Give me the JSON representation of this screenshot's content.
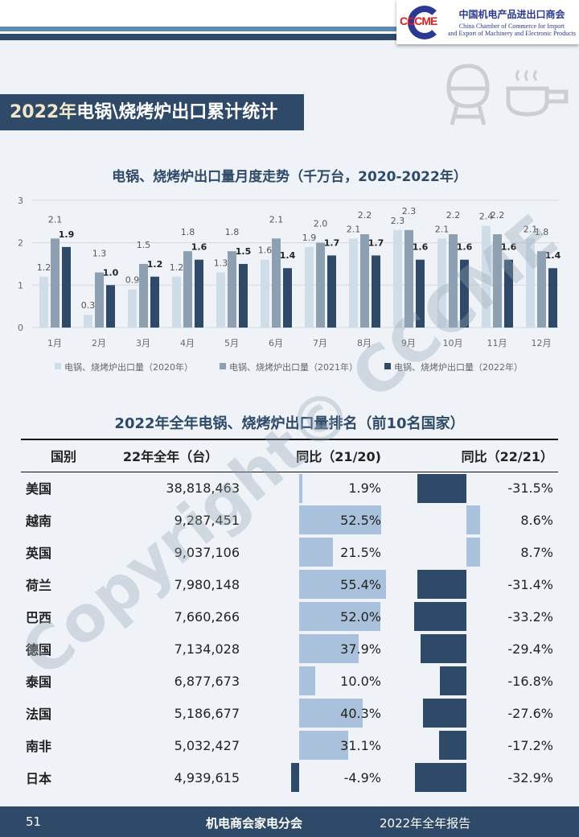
{
  "header": {
    "logo_mark": "CCCME",
    "logo_cn": "中国机电产品进出口商会",
    "logo_en_1": "China Chamber of Commerce for Import",
    "logo_en_2": "and Export of Machinery and Electronic Products"
  },
  "page_title_year": "2022年",
  "page_title_rest": "电锅\\烧烤炉出口累计统计",
  "watermark": "Copyright© CCCME",
  "chart_data": {
    "type": "bar",
    "title": "电锅、烧烤炉出口量月度走势（千万台，2020-2022年）",
    "categories": [
      "1月",
      "2月",
      "3月",
      "4月",
      "5月",
      "6月",
      "7月",
      "8月",
      "9月",
      "10月",
      "11月",
      "12月"
    ],
    "ylim": [
      0,
      3
    ],
    "yticks": [
      "0",
      "1",
      "2",
      "3"
    ],
    "series": [
      {
        "name": "电锅、烧烤炉出口量（2020年）",
        "color": "#cfdde8",
        "values": [
          1.2,
          0.3,
          0.9,
          1.2,
          1.3,
          1.6,
          1.9,
          2.1,
          2.3,
          2.1,
          2.4,
          2.1
        ]
      },
      {
        "name": "电锅、烧烤炉出口量（2021年）",
        "color": "#8da0b2",
        "values": [
          2.1,
          1.3,
          1.5,
          1.8,
          1.8,
          2.1,
          2.0,
          2.2,
          2.3,
          2.2,
          2.2,
          1.8
        ]
      },
      {
        "name": "电锅、烧烤炉出口量（2022年）",
        "color": "#2e4a68",
        "values": [
          1.9,
          1.0,
          1.2,
          1.6,
          1.5,
          1.4,
          1.7,
          1.7,
          1.6,
          1.6,
          1.6,
          1.4
        ]
      }
    ],
    "legend": "bottom"
  },
  "table": {
    "title": "2022年全年电锅、烧烤炉出口量排名（前10名国家）",
    "headers": [
      "国别",
      "22年全年（台）",
      "同比（21/20)",
      "同比（22/21）"
    ],
    "bar_colors": {
      "pos": "#a9c1da",
      "neg": "#2e4a68"
    },
    "rows": [
      {
        "country": "美国",
        "total": "38,818,463",
        "yoy1": "1.9%",
        "yoy1_v": 1.9,
        "yoy2": "-31.5%",
        "yoy2_v": -31.5
      },
      {
        "country": "越南",
        "total": "9,287,451",
        "yoy1": "52.5%",
        "yoy1_v": 52.5,
        "yoy2": "8.6%",
        "yoy2_v": 8.6
      },
      {
        "country": "英国",
        "total": "9,037,106",
        "yoy1": "21.5%",
        "yoy1_v": 21.5,
        "yoy2": "8.7%",
        "yoy2_v": 8.7
      },
      {
        "country": "荷兰",
        "total": "7,980,148",
        "yoy1": "55.4%",
        "yoy1_v": 55.4,
        "yoy2": "-31.4%",
        "yoy2_v": -31.4
      },
      {
        "country": "巴西",
        "total": "7,660,266",
        "yoy1": "52.0%",
        "yoy1_v": 52.0,
        "yoy2": "-33.2%",
        "yoy2_v": -33.2
      },
      {
        "country": "德国",
        "total": "7,134,028",
        "yoy1": "37.9%",
        "yoy1_v": 37.9,
        "yoy2": "-29.4%",
        "yoy2_v": -29.4
      },
      {
        "country": "泰国",
        "total": "6,877,673",
        "yoy1": "10.0%",
        "yoy1_v": 10.0,
        "yoy2": "-16.8%",
        "yoy2_v": -16.8
      },
      {
        "country": "法国",
        "total": "5,186,677",
        "yoy1": "40.3%",
        "yoy1_v": 40.3,
        "yoy2": "-27.6%",
        "yoy2_v": -27.6
      },
      {
        "country": "南非",
        "total": "5,032,427",
        "yoy1": "31.1%",
        "yoy1_v": 31.1,
        "yoy2": "-17.2%",
        "yoy2_v": -17.2
      },
      {
        "country": "日本",
        "total": "4,939,615",
        "yoy1": "-4.9%",
        "yoy1_v": -4.9,
        "yoy2": "-32.9%",
        "yoy2_v": -32.9
      }
    ]
  },
  "footer": {
    "page": "51",
    "org": "机电商会家电分会",
    "report": "2022年全年报告"
  }
}
